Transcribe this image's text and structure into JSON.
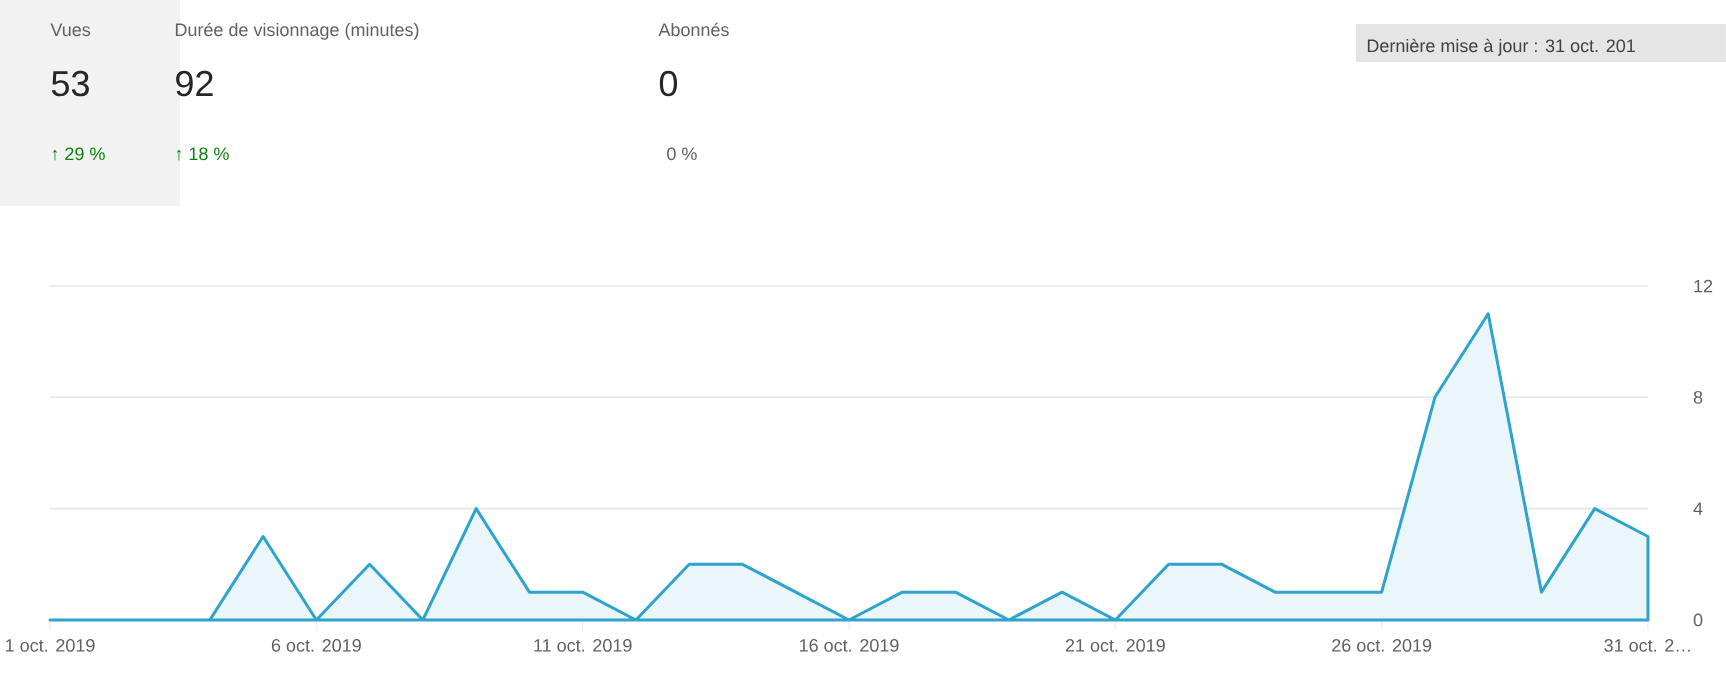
{
  "chart_data": {
    "type": "area",
    "x": [
      "2019-10-01",
      "2019-10-02",
      "2019-10-03",
      "2019-10-04",
      "2019-10-05",
      "2019-10-06",
      "2019-10-07",
      "2019-10-08",
      "2019-10-09",
      "2019-10-10",
      "2019-10-11",
      "2019-10-12",
      "2019-10-13",
      "2019-10-14",
      "2019-10-15",
      "2019-10-16",
      "2019-10-17",
      "2019-10-18",
      "2019-10-19",
      "2019-10-20",
      "2019-10-21",
      "2019-10-22",
      "2019-10-23",
      "2019-10-24",
      "2019-10-25",
      "2019-10-26",
      "2019-10-27",
      "2019-10-28",
      "2019-10-29",
      "2019-10-30",
      "2019-10-31"
    ],
    "series": [
      {
        "color": "#2ea3cc",
        "values": [
          0,
          0,
          0,
          0,
          3,
          0,
          2,
          0,
          4,
          1,
          1,
          0,
          2,
          2,
          1,
          0,
          1,
          1,
          0,
          1,
          0,
          2,
          2,
          1,
          1,
          1,
          8,
          11,
          1,
          4,
          3
        ]
      }
    ],
    "xlim": [
      "2019-10-01",
      "2019-10-31"
    ],
    "xticks": [
      {
        "value": "2019-10-01",
        "label": "1 oct. 2019"
      },
      {
        "value": "2019-10-06",
        "label": "6 oct. 2019"
      },
      {
        "value": "2019-10-11",
        "label": "11 oct. 2019"
      },
      {
        "value": "2019-10-16",
        "label": "16 oct. 2019"
      },
      {
        "value": "2019-10-21",
        "label": "21 oct. 2019"
      },
      {
        "value": "2019-10-26",
        "label": "26 oct. 2019"
      },
      {
        "value": "2019-10-31",
        "label": "31 oct. 2…"
      }
    ],
    "ylim": [
      0,
      12
    ],
    "yticks": [
      0,
      4,
      8,
      12
    ],
    "grid": "y",
    "annotations": [
      "Vues",
      "53",
      "↑ 29 %",
      "Durée de visionnage (minutes)",
      "92",
      "↑ 18 %",
      "Abonnés",
      "0",
      "0 %",
      "Dernière mise à jour : 31 oct. 201"
    ]
  }
}
